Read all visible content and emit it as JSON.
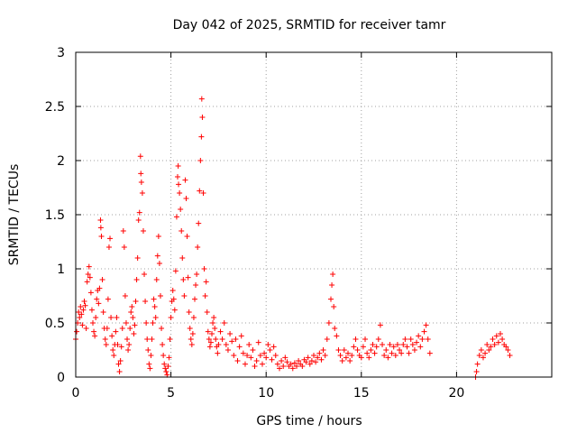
{
  "chart_data": {
    "type": "scatter",
    "title": "Day 042 of 2025, SRMTID for receiver tamr",
    "xlabel": "GPS time / hours",
    "ylabel": "SRMTID / TECUs",
    "xlim": [
      0,
      25
    ],
    "ylim": [
      0,
      3
    ],
    "xticks": [
      0,
      5,
      10,
      15,
      20
    ],
    "xtick_labels": [
      "0",
      "5",
      "10",
      "15",
      "20"
    ],
    "yticks": [
      0,
      0.5,
      1,
      1.5,
      2,
      2.5,
      3
    ],
    "ytick_labels": [
      "0",
      "0.5",
      "1",
      "1.5",
      "2",
      "2.5",
      "3"
    ],
    "grid": true,
    "marker": "+",
    "color": "#ff0000",
    "series": [
      {
        "name": "SRMTID",
        "points": [
          [
            0.0,
            0.35
          ],
          [
            0.05,
            0.42
          ],
          [
            0.1,
            0.5
          ],
          [
            0.15,
            0.6
          ],
          [
            0.2,
            0.55
          ],
          [
            0.25,
            0.65
          ],
          [
            0.3,
            0.58
          ],
          [
            0.35,
            0.48
          ],
          [
            0.4,
            0.62
          ],
          [
            0.45,
            0.7
          ],
          [
            0.5,
            0.66
          ],
          [
            0.55,
            0.45
          ],
          [
            0.6,
            0.88
          ],
          [
            0.65,
            0.95
          ],
          [
            0.7,
            1.02
          ],
          [
            0.75,
            0.92
          ],
          [
            0.8,
            0.78
          ],
          [
            0.85,
            0.62
          ],
          [
            0.9,
            0.5
          ],
          [
            0.95,
            0.42
          ],
          [
            1.0,
            0.38
          ],
          [
            1.05,
            0.55
          ],
          [
            1.1,
            0.72
          ],
          [
            1.15,
            0.8
          ],
          [
            1.2,
            0.68
          ],
          [
            1.25,
            0.82
          ],
          [
            1.3,
            1.45
          ],
          [
            1.32,
            1.38
          ],
          [
            1.35,
            1.3
          ],
          [
            1.4,
            0.9
          ],
          [
            1.45,
            0.6
          ],
          [
            1.5,
            0.45
          ],
          [
            1.55,
            0.35
          ],
          [
            1.6,
            0.3
          ],
          [
            1.65,
            0.45
          ],
          [
            1.7,
            0.72
          ],
          [
            1.75,
            1.2
          ],
          [
            1.8,
            1.28
          ],
          [
            1.85,
            0.55
          ],
          [
            1.9,
            0.38
          ],
          [
            1.95,
            0.25
          ],
          [
            2.0,
            0.2
          ],
          [
            2.05,
            0.3
          ],
          [
            2.1,
            0.42
          ],
          [
            2.15,
            0.55
          ],
          [
            2.2,
            0.3
          ],
          [
            2.25,
            0.12
          ],
          [
            2.3,
            0.05
          ],
          [
            2.35,
            0.15
          ],
          [
            2.4,
            0.28
          ],
          [
            2.45,
            0.45
          ],
          [
            2.5,
            1.35
          ],
          [
            2.55,
            1.2
          ],
          [
            2.6,
            0.75
          ],
          [
            2.65,
            0.5
          ],
          [
            2.7,
            0.35
          ],
          [
            2.75,
            0.25
          ],
          [
            2.8,
            0.3
          ],
          [
            2.85,
            0.45
          ],
          [
            2.9,
            0.6
          ],
          [
            2.95,
            0.65
          ],
          [
            3.0,
            0.55
          ],
          [
            3.05,
            0.4
          ],
          [
            3.1,
            0.48
          ],
          [
            3.15,
            0.7
          ],
          [
            3.2,
            0.9
          ],
          [
            3.25,
            1.1
          ],
          [
            3.3,
            1.45
          ],
          [
            3.35,
            1.52
          ],
          [
            3.4,
            2.04
          ],
          [
            3.42,
            1.88
          ],
          [
            3.45,
            1.8
          ],
          [
            3.5,
            1.7
          ],
          [
            3.55,
            1.35
          ],
          [
            3.6,
            0.95
          ],
          [
            3.65,
            0.7
          ],
          [
            3.7,
            0.5
          ],
          [
            3.75,
            0.35
          ],
          [
            3.8,
            0.25
          ],
          [
            3.85,
            0.12
          ],
          [
            3.9,
            0.08
          ],
          [
            3.95,
            0.2
          ],
          [
            4.0,
            0.35
          ],
          [
            4.05,
            0.5
          ],
          [
            4.1,
            0.72
          ],
          [
            4.15,
            0.65
          ],
          [
            4.2,
            0.55
          ],
          [
            4.25,
            0.9
          ],
          [
            4.3,
            1.12
          ],
          [
            4.35,
            1.3
          ],
          [
            4.4,
            1.05
          ],
          [
            4.45,
            0.75
          ],
          [
            4.5,
            0.45
          ],
          [
            4.55,
            0.3
          ],
          [
            4.6,
            0.2
          ],
          [
            4.65,
            0.12
          ],
          [
            4.7,
            0.08
          ],
          [
            4.75,
            0.05
          ],
          [
            4.8,
            0.02
          ],
          [
            4.85,
            0.1
          ],
          [
            4.9,
            0.18
          ],
          [
            4.95,
            0.35
          ],
          [
            5.0,
            0.55
          ],
          [
            5.05,
            0.7
          ],
          [
            5.1,
            0.8
          ],
          [
            5.15,
            0.72
          ],
          [
            5.2,
            0.62
          ],
          [
            5.25,
            0.98
          ],
          [
            5.3,
            1.48
          ],
          [
            5.35,
            1.85
          ],
          [
            5.38,
            1.95
          ],
          [
            5.4,
            1.78
          ],
          [
            5.45,
            1.7
          ],
          [
            5.5,
            1.55
          ],
          [
            5.55,
            1.35
          ],
          [
            5.6,
            1.1
          ],
          [
            5.65,
            0.9
          ],
          [
            5.7,
            0.75
          ],
          [
            5.75,
            1.82
          ],
          [
            5.8,
            1.65
          ],
          [
            5.85,
            1.3
          ],
          [
            5.9,
            0.92
          ],
          [
            5.95,
            0.6
          ],
          [
            6.0,
            0.45
          ],
          [
            6.05,
            0.35
          ],
          [
            6.1,
            0.3
          ],
          [
            6.15,
            0.4
          ],
          [
            6.2,
            0.55
          ],
          [
            6.25,
            0.72
          ],
          [
            6.3,
            0.85
          ],
          [
            6.35,
            0.95
          ],
          [
            6.4,
            1.2
          ],
          [
            6.45,
            1.42
          ],
          [
            6.5,
            1.72
          ],
          [
            6.55,
            2.0
          ],
          [
            6.6,
            2.22
          ],
          [
            6.62,
            2.57
          ],
          [
            6.65,
            2.4
          ],
          [
            6.7,
            1.7
          ],
          [
            6.75,
            1.0
          ],
          [
            6.8,
            0.75
          ],
          [
            6.85,
            0.88
          ],
          [
            6.9,
            0.6
          ],
          [
            6.95,
            0.42
          ],
          [
            7.0,
            0.35
          ],
          [
            7.05,
            0.28
          ],
          [
            7.1,
            0.32
          ],
          [
            7.15,
            0.4
          ],
          [
            7.2,
            0.5
          ],
          [
            7.25,
            0.55
          ],
          [
            7.3,
            0.45
          ],
          [
            7.35,
            0.35
          ],
          [
            7.4,
            0.28
          ],
          [
            7.45,
            0.22
          ],
          [
            7.5,
            0.3
          ],
          [
            7.6,
            0.42
          ],
          [
            7.7,
            0.35
          ],
          [
            7.8,
            0.5
          ],
          [
            7.9,
            0.3
          ],
          [
            8.0,
            0.25
          ],
          [
            8.1,
            0.4
          ],
          [
            8.2,
            0.33
          ],
          [
            8.3,
            0.2
          ],
          [
            8.4,
            0.35
          ],
          [
            8.5,
            0.15
          ],
          [
            8.6,
            0.28
          ],
          [
            8.7,
            0.38
          ],
          [
            8.8,
            0.22
          ],
          [
            8.9,
            0.12
          ],
          [
            9.0,
            0.2
          ],
          [
            9.1,
            0.3
          ],
          [
            9.2,
            0.18
          ],
          [
            9.3,
            0.25
          ],
          [
            9.4,
            0.1
          ],
          [
            9.5,
            0.15
          ],
          [
            9.6,
            0.32
          ],
          [
            9.7,
            0.2
          ],
          [
            9.8,
            0.12
          ],
          [
            9.9,
            0.22
          ],
          [
            10.0,
            0.18
          ],
          [
            10.1,
            0.3
          ],
          [
            10.2,
            0.25
          ],
          [
            10.3,
            0.16
          ],
          [
            10.4,
            0.28
          ],
          [
            10.5,
            0.2
          ],
          [
            10.6,
            0.12
          ],
          [
            10.7,
            0.08
          ],
          [
            10.8,
            0.15
          ],
          [
            10.9,
            0.1
          ],
          [
            11.0,
            0.18
          ],
          [
            11.1,
            0.14
          ],
          [
            11.2,
            0.1
          ],
          [
            11.3,
            0.12
          ],
          [
            11.4,
            0.08
          ],
          [
            11.5,
            0.13
          ],
          [
            11.6,
            0.1
          ],
          [
            11.7,
            0.15
          ],
          [
            11.8,
            0.12
          ],
          [
            11.9,
            0.1
          ],
          [
            12.0,
            0.16
          ],
          [
            12.1,
            0.14
          ],
          [
            12.2,
            0.18
          ],
          [
            12.3,
            0.12
          ],
          [
            12.4,
            0.15
          ],
          [
            12.5,
            0.2
          ],
          [
            12.6,
            0.14
          ],
          [
            12.7,
            0.18
          ],
          [
            12.8,
            0.22
          ],
          [
            12.9,
            0.16
          ],
          [
            13.0,
            0.25
          ],
          [
            13.1,
            0.2
          ],
          [
            13.2,
            0.35
          ],
          [
            13.3,
            0.5
          ],
          [
            13.4,
            0.72
          ],
          [
            13.45,
            0.85
          ],
          [
            13.5,
            0.95
          ],
          [
            13.55,
            0.65
          ],
          [
            13.6,
            0.45
          ],
          [
            13.7,
            0.38
          ],
          [
            13.8,
            0.25
          ],
          [
            13.9,
            0.2
          ],
          [
            14.0,
            0.15
          ],
          [
            14.1,
            0.25
          ],
          [
            14.2,
            0.18
          ],
          [
            14.3,
            0.22
          ],
          [
            14.4,
            0.15
          ],
          [
            14.5,
            0.2
          ],
          [
            14.6,
            0.28
          ],
          [
            14.7,
            0.35
          ],
          [
            14.8,
            0.25
          ],
          [
            14.9,
            0.2
          ],
          [
            15.0,
            0.18
          ],
          [
            15.1,
            0.28
          ],
          [
            15.2,
            0.35
          ],
          [
            15.3,
            0.22
          ],
          [
            15.4,
            0.18
          ],
          [
            15.5,
            0.25
          ],
          [
            15.6,
            0.3
          ],
          [
            15.7,
            0.22
          ],
          [
            15.8,
            0.28
          ],
          [
            15.9,
            0.35
          ],
          [
            16.0,
            0.48
          ],
          [
            16.1,
            0.3
          ],
          [
            16.2,
            0.2
          ],
          [
            16.3,
            0.25
          ],
          [
            16.4,
            0.18
          ],
          [
            16.5,
            0.3
          ],
          [
            16.6,
            0.22
          ],
          [
            16.7,
            0.28
          ],
          [
            16.8,
            0.2
          ],
          [
            16.9,
            0.3
          ],
          [
            17.0,
            0.25
          ],
          [
            17.1,
            0.22
          ],
          [
            17.2,
            0.3
          ],
          [
            17.3,
            0.35
          ],
          [
            17.4,
            0.28
          ],
          [
            17.5,
            0.22
          ],
          [
            17.6,
            0.35
          ],
          [
            17.7,
            0.3
          ],
          [
            17.8,
            0.25
          ],
          [
            17.9,
            0.32
          ],
          [
            18.0,
            0.38
          ],
          [
            18.1,
            0.28
          ],
          [
            18.2,
            0.35
          ],
          [
            18.3,
            0.42
          ],
          [
            18.4,
            0.48
          ],
          [
            18.5,
            0.35
          ],
          [
            18.6,
            0.22
          ],
          [
            21.0,
            0.0
          ],
          [
            21.05,
            0.05
          ],
          [
            21.1,
            0.12
          ],
          [
            21.2,
            0.2
          ],
          [
            21.3,
            0.25
          ],
          [
            21.4,
            0.18
          ],
          [
            21.5,
            0.22
          ],
          [
            21.6,
            0.3
          ],
          [
            21.7,
            0.25
          ],
          [
            21.8,
            0.28
          ],
          [
            21.9,
            0.35
          ],
          [
            22.0,
            0.3
          ],
          [
            22.1,
            0.38
          ],
          [
            22.2,
            0.32
          ],
          [
            22.3,
            0.4
          ],
          [
            22.4,
            0.35
          ],
          [
            22.5,
            0.3
          ],
          [
            22.6,
            0.28
          ],
          [
            22.7,
            0.25
          ],
          [
            22.8,
            0.2
          ]
        ]
      }
    ]
  }
}
